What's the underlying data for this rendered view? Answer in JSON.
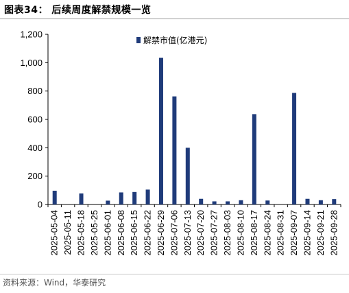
{
  "figure": {
    "title": "图表34： 后续周度解禁规模一览",
    "source": "资料来源：Wind，华泰研究"
  },
  "colors": {
    "bar": "#1f3b7a",
    "axis": "#000000"
  },
  "chart_data": {
    "type": "bar",
    "title": "",
    "xlabel": "",
    "ylabel": "",
    "ylim": [
      0,
      1200
    ],
    "yticks": [
      0,
      200,
      400,
      600,
      800,
      1000,
      1200
    ],
    "ytick_labels": [
      "0",
      "200",
      "400",
      "600",
      "800",
      "1,000",
      "1,200"
    ],
    "grid": false,
    "legend_position": "top-center",
    "categories": [
      "2025-05-04",
      "2025-05-11",
      "2025-05-18",
      "2025-05-25",
      "2025-06-01",
      "2025-06-08",
      "2025-06-15",
      "2025-06-22",
      "2025-06-29",
      "2025-07-06",
      "2025-07-13",
      "2025-07-20",
      "2025-07-27",
      "2025-08-03",
      "2025-08-10",
      "2025-08-17",
      "2025-08-24",
      "2025-08-31",
      "2025-09-07",
      "2025-09-14",
      "2025-09-21",
      "2025-09-28"
    ],
    "series": [
      {
        "name": "解禁市值(亿港元)",
        "values": [
          97,
          0,
          78,
          0,
          27,
          85,
          88,
          105,
          1035,
          762,
          400,
          40,
          22,
          22,
          30,
          637,
          28,
          0,
          787,
          40,
          30,
          38
        ]
      }
    ]
  }
}
